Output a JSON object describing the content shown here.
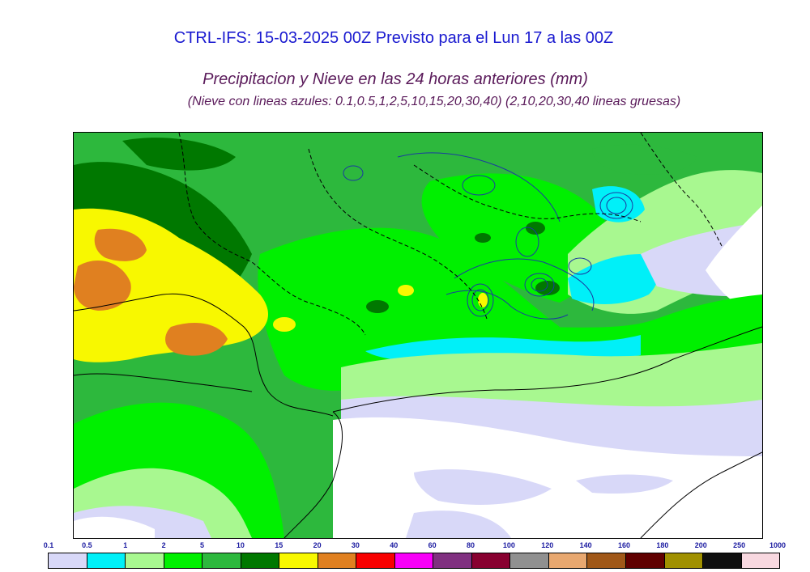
{
  "header": {
    "title": "CTRL-IFS: 15-03-2025 00Z Previsto para el Lun 17 a las 00Z",
    "subtitle": "Precipitacion y Nieve en las 24 horas anteriores (mm)",
    "note": "(Nieve con lineas azules: 0.1,0.5,1,2,5,10,15,20,30,40)  (2,10,20,30,40 lineas gruesas)"
  },
  "legend": {
    "labels": [
      "0.1",
      "0.5",
      "1",
      "2",
      "5",
      "10",
      "15",
      "20",
      "30",
      "40",
      "60",
      "80",
      "100",
      "120",
      "140",
      "160",
      "180",
      "200",
      "250",
      "1000"
    ],
    "colors": [
      "#d8d8f8",
      "#00f0f8",
      "#a8f890",
      "#00f000",
      "#2db83d",
      "#007800",
      "#f8f800",
      "#e08020",
      "#f80000",
      "#f800f8",
      "#803080",
      "#880030",
      "#909090",
      "#e8a870",
      "#a05818",
      "#600000",
      "#a09000",
      "#101010",
      "#f8d8e0"
    ]
  },
  "map": {
    "colors": {
      "lavender": "#d8d8f8",
      "cyan": "#00f0f8",
      "lightgreen": "#a8f890",
      "green": "#00f000",
      "midgreen": "#2db83d",
      "darkgreen": "#007800",
      "yellow": "#f8f800",
      "orange": "#e08020",
      "sea": "#ffffff"
    }
  }
}
